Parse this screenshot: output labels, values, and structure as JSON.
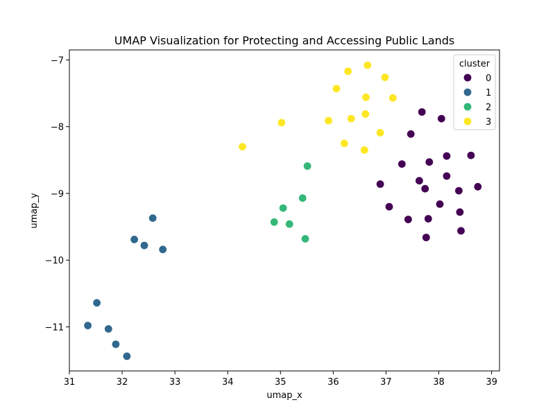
{
  "chart_data": {
    "type": "scatter",
    "title": "UMAP Visualization for Protecting and Accessing Public Lands",
    "xlabel": "umap_x",
    "ylabel": "umap_y",
    "xlim": [
      31.0,
      39.15
    ],
    "ylim": [
      -11.66,
      -6.85
    ],
    "xticks": [
      31,
      32,
      33,
      34,
      35,
      36,
      37,
      38,
      39
    ],
    "yticks": [
      -11,
      -10,
      -9,
      -8,
      -7
    ],
    "grid": false,
    "legend": {
      "title": "cluster",
      "position": "top-right"
    },
    "series": [
      {
        "name": "0",
        "color": "#440154",
        "points": [
          [
            37.68,
            -7.78
          ],
          [
            38.05,
            -7.88
          ],
          [
            37.47,
            -8.11
          ],
          [
            38.15,
            -8.44
          ],
          [
            38.61,
            -8.43
          ],
          [
            37.3,
            -8.56
          ],
          [
            37.82,
            -8.53
          ],
          [
            38.15,
            -8.74
          ],
          [
            36.89,
            -8.86
          ],
          [
            37.63,
            -8.81
          ],
          [
            37.74,
            -8.93
          ],
          [
            38.38,
            -8.96
          ],
          [
            38.74,
            -8.9
          ],
          [
            38.02,
            -9.16
          ],
          [
            37.06,
            -9.2
          ],
          [
            38.4,
            -9.28
          ],
          [
            37.42,
            -9.39
          ],
          [
            37.8,
            -9.38
          ],
          [
            38.42,
            -9.56
          ],
          [
            37.76,
            -9.66
          ]
        ]
      },
      {
        "name": "1",
        "color": "#31688e",
        "points": [
          [
            32.58,
            -9.37
          ],
          [
            32.23,
            -9.69
          ],
          [
            32.42,
            -9.78
          ],
          [
            32.77,
            -9.84
          ],
          [
            31.52,
            -10.64
          ],
          [
            31.35,
            -10.98
          ],
          [
            31.74,
            -11.03
          ],
          [
            31.88,
            -11.26
          ],
          [
            32.09,
            -11.44
          ]
        ]
      },
      {
        "name": "2",
        "color": "#35b779",
        "points": [
          [
            35.51,
            -8.59
          ],
          [
            35.42,
            -9.07
          ],
          [
            35.05,
            -9.22
          ],
          [
            34.88,
            -9.43
          ],
          [
            35.17,
            -9.46
          ],
          [
            35.47,
            -9.68
          ]
        ]
      },
      {
        "name": "3",
        "color": "#fde725",
        "points": [
          [
            36.65,
            -7.08
          ],
          [
            36.28,
            -7.17
          ],
          [
            36.98,
            -7.26
          ],
          [
            36.06,
            -7.43
          ],
          [
            36.62,
            -7.56
          ],
          [
            37.13,
            -7.57
          ],
          [
            36.61,
            -7.81
          ],
          [
            35.91,
            -7.91
          ],
          [
            36.34,
            -7.88
          ],
          [
            35.02,
            -7.94
          ],
          [
            36.89,
            -8.09
          ],
          [
            34.28,
            -8.3
          ],
          [
            36.21,
            -8.25
          ],
          [
            36.59,
            -8.35
          ]
        ]
      }
    ]
  }
}
